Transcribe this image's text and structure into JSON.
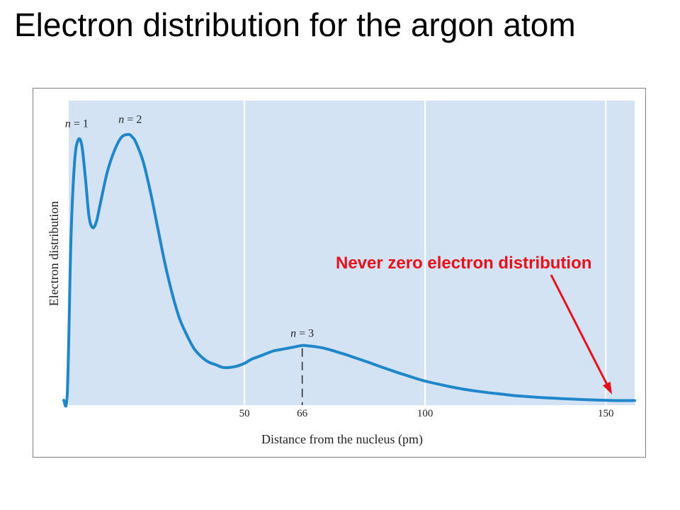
{
  "slide": {
    "title": "Electron distribution for the argon atom"
  },
  "chart_data": {
    "type": "line",
    "title": "",
    "xlabel": "Distance from the nucleus (pm)",
    "ylabel": "Electron distribution",
    "xlim": [
      0,
      158
    ],
    "ylim": [
      0,
      1.0
    ],
    "xticks": [
      50,
      66,
      100,
      150
    ],
    "grid": "vertical lines at 50, 100, 150",
    "series": [
      {
        "x": [
          0,
          1,
          2,
          3,
          4,
          5,
          6,
          7,
          8,
          9,
          10,
          12,
          14,
          16,
          18,
          19,
          20,
          22,
          24,
          26,
          28,
          30,
          32,
          34,
          36,
          38,
          40,
          42,
          44,
          46,
          48,
          50,
          52,
          54,
          56,
          58,
          60,
          62,
          64,
          66,
          68,
          70,
          72,
          74,
          76,
          78,
          80,
          84,
          88,
          92,
          96,
          100,
          105,
          110,
          115,
          120,
          125,
          130,
          135,
          140,
          145,
          150,
          154,
          158
        ],
        "y": [
          0.01,
          0.04,
          0.6,
          0.88,
          0.96,
          0.94,
          0.82,
          0.68,
          0.64,
          0.66,
          0.72,
          0.84,
          0.92,
          0.97,
          0.98,
          0.97,
          0.95,
          0.88,
          0.77,
          0.64,
          0.51,
          0.4,
          0.31,
          0.25,
          0.2,
          0.17,
          0.15,
          0.14,
          0.13,
          0.13,
          0.135,
          0.145,
          0.16,
          0.17,
          0.18,
          0.19,
          0.195,
          0.2,
          0.205,
          0.21,
          0.208,
          0.205,
          0.2,
          0.193,
          0.185,
          0.177,
          0.168,
          0.15,
          0.131,
          0.113,
          0.096,
          0.08,
          0.065,
          0.052,
          0.042,
          0.034,
          0.027,
          0.022,
          0.018,
          0.015,
          0.012,
          0.01,
          0.009,
          0.009
        ]
      }
    ],
    "peak_labels": [
      {
        "label": "n = 1",
        "x": 4,
        "y": 0.96
      },
      {
        "label": "n = 2",
        "x": 18,
        "y": 0.98
      },
      {
        "label": "n = 3",
        "x": 66,
        "y": 0.21
      }
    ],
    "marker_line": {
      "x": 66,
      "style": "dashed"
    },
    "annotation": {
      "text": "Never zero electron distribution",
      "x": 150,
      "y": 0.01,
      "color": "#e8101a"
    },
    "colors": {
      "plot_bg": "#d4e3f3",
      "curve": "#1f86c9",
      "grid": "#ffffff",
      "annotation": "#e8101a"
    }
  }
}
